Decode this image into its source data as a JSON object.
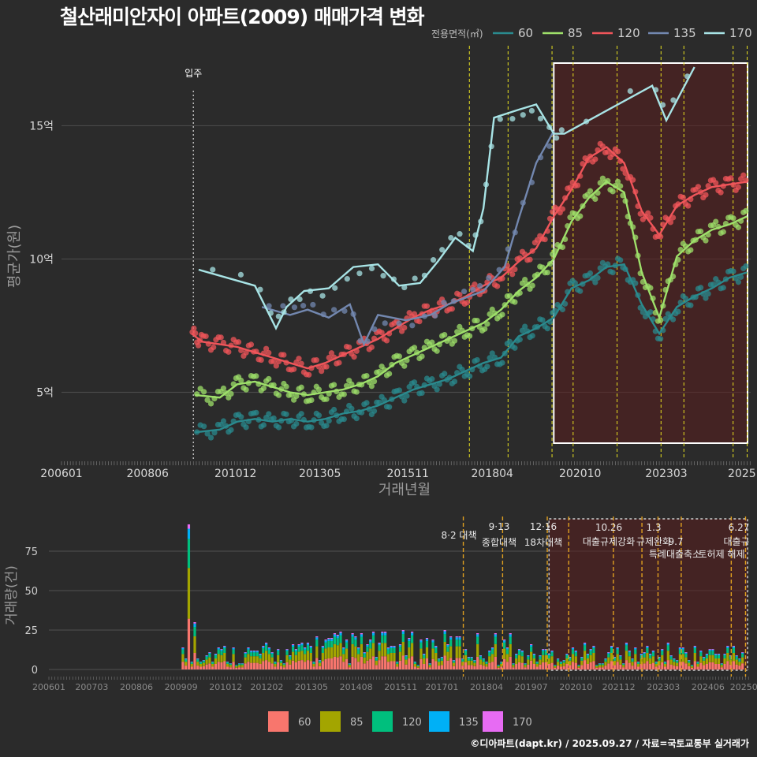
{
  "title": "철산래미안자이 아파트(2009) 매매가격 변화",
  "footer": "©디아파트(dapt.kr) / 2025.09.27 / 자료=국토교통부 실거래가",
  "legend": {
    "label": "전용면적(㎡)",
    "items": [
      {
        "name": "60",
        "line_color": "#2a8a8e",
        "bar_color": "#f8766d"
      },
      {
        "name": "85",
        "line_color": "#9ee06a",
        "bar_color": "#a3a500"
      },
      {
        "name": "120",
        "line_color": "#f0555a",
        "bar_color": "#00bf7d"
      },
      {
        "name": "135",
        "line_color": "#7388b0",
        "bar_color": "#00b0f6"
      },
      {
        "name": "170",
        "line_color": "#a8e4e6",
        "bar_color": "#e76bf3"
      }
    ]
  },
  "chart_data": [
    {
      "type": "line",
      "title": "철산래미안자이 아파트(2009) 매매가격 변화",
      "xlabel": "거래년월",
      "ylabel": "평균가(원)",
      "x_tick_labels": [
        "200601",
        "200806",
        "201012",
        "201305",
        "201511",
        "201804",
        "202010",
        "202303",
        "2025"
      ],
      "y_ticks": [
        {
          "v": 5,
          "label": "5억"
        },
        {
          "v": 10,
          "label": "10억"
        },
        {
          "v": 15,
          "label": "15억"
        }
      ],
      "ylim": [
        2.5,
        18.0
      ],
      "xlim": [
        2006.0,
        2025.6
      ],
      "move_in": {
        "x": 2009.75,
        "label": "입주"
      },
      "policy_lines": [
        2017.6,
        2018.7,
        2019.95,
        2020.55,
        2021.8,
        2023.05,
        2023.7,
        2025.1,
        2025.5
      ],
      "highlight_range": [
        2020.0,
        2025.6
      ],
      "series": [
        {
          "name": "60",
          "x": [
            2009.8,
            2010.5,
            2011.0,
            2011.5,
            2012.0,
            2012.5,
            2013.0,
            2013.5,
            2014.0,
            2014.5,
            2015.0,
            2015.5,
            2016.0,
            2016.5,
            2017.0,
            2017.5,
            2018.0,
            2018.5,
            2019.0,
            2019.5,
            2020.0,
            2020.5,
            2021.0,
            2021.5,
            2022.0,
            2022.5,
            2023.0,
            2023.5,
            2024.0,
            2024.5,
            2025.0,
            2025.5
          ],
          "values": [
            3.5,
            3.6,
            3.9,
            4.0,
            3.9,
            4.0,
            3.9,
            4.0,
            4.2,
            4.3,
            4.5,
            4.8,
            5.1,
            5.3,
            5.5,
            5.8,
            6.1,
            6.3,
            7.1,
            7.4,
            7.8,
            8.9,
            9.2,
            9.7,
            9.8,
            8.3,
            7.2,
            8.2,
            8.6,
            8.9,
            9.3,
            9.5
          ]
        },
        {
          "name": "85",
          "x": [
            2009.8,
            2010.5,
            2011.0,
            2011.5,
            2012.0,
            2012.5,
            2013.0,
            2013.5,
            2014.0,
            2014.5,
            2015.0,
            2015.5,
            2016.0,
            2016.5,
            2017.0,
            2017.5,
            2018.0,
            2018.5,
            2019.0,
            2019.5,
            2020.0,
            2020.5,
            2021.0,
            2021.5,
            2022.0,
            2022.5,
            2023.0,
            2023.5,
            2024.0,
            2024.5,
            2025.0,
            2025.5
          ],
          "values": [
            4.9,
            4.8,
            5.3,
            5.4,
            5.2,
            5.0,
            4.9,
            5.0,
            5.1,
            5.3,
            5.6,
            6.1,
            6.4,
            6.7,
            7.0,
            7.3,
            7.6,
            8.1,
            8.8,
            9.3,
            10.0,
            11.4,
            12.3,
            12.9,
            12.5,
            9.5,
            7.8,
            10.1,
            10.7,
            11.1,
            11.3,
            11.6
          ]
        },
        {
          "name": "120",
          "x": [
            2009.7,
            2010.0,
            2010.5,
            2011.0,
            2011.5,
            2012.0,
            2012.5,
            2013.0,
            2013.5,
            2014.0,
            2014.5,
            2015.0,
            2015.5,
            2016.0,
            2016.5,
            2017.0,
            2017.5,
            2018.0,
            2018.5,
            2019.0,
            2019.5,
            2020.0,
            2020.5,
            2021.0,
            2021.5,
            2022.0,
            2022.5,
            2023.0,
            2023.5,
            2024.0,
            2024.5,
            2025.0,
            2025.5
          ],
          "values": [
            7.2,
            6.9,
            6.8,
            6.7,
            6.5,
            6.3,
            6.1,
            5.9,
            6.1,
            6.4,
            6.7,
            7.0,
            7.4,
            7.8,
            8.1,
            8.3,
            8.6,
            9.0,
            9.3,
            9.9,
            10.4,
            11.6,
            12.6,
            13.8,
            14.2,
            13.6,
            11.8,
            10.9,
            12.0,
            12.4,
            12.7,
            12.8,
            12.9
          ]
        },
        {
          "name": "135",
          "x": [
            2011.7,
            2012.5,
            2013.0,
            2013.6,
            2014.2,
            2014.6,
            2015.0,
            2015.8,
            2016.5,
            2017.0,
            2017.6,
            2018.0,
            2018.6,
            2019.0,
            2019.5,
            2020.0
          ],
          "values": [
            8.2,
            7.9,
            8.1,
            7.8,
            8.3,
            6.8,
            7.9,
            7.7,
            7.9,
            8.3,
            8.6,
            8.8,
            9.7,
            11.5,
            13.6,
            14.8
          ]
        },
        {
          "name": "170",
          "x": [
            2009.9,
            2011.5,
            2012.1,
            2012.4,
            2012.9,
            2013.6,
            2014.3,
            2015.0,
            2015.6,
            2016.2,
            2016.7,
            2017.2,
            2017.7,
            2018.0,
            2018.3,
            2019.0,
            2019.5,
            2020.0,
            2020.3,
            2022.8,
            2023.2,
            2024.0
          ],
          "values": [
            9.6,
            9.0,
            7.4,
            8.2,
            8.8,
            8.9,
            9.7,
            9.8,
            9.0,
            9.1,
            9.9,
            10.8,
            10.3,
            11.9,
            15.3,
            15.6,
            15.8,
            14.7,
            14.7,
            16.5,
            15.2,
            17.2
          ]
        }
      ]
    },
    {
      "type": "bar",
      "title": "",
      "xlabel": "",
      "ylabel": "거래량(건)",
      "x_tick_labels": [
        "200601",
        "200703",
        "200806",
        "200909",
        "201012",
        "201202",
        "201305",
        "201408",
        "201511",
        "201701",
        "201804",
        "201907",
        "202010",
        "202112",
        "202303",
        "202406",
        "20250"
      ],
      "y_ticks": [
        0,
        25,
        50,
        75
      ],
      "ylim": [
        -3,
        97
      ],
      "xlim": [
        2006.0,
        2025.6
      ],
      "stacked": true,
      "notable": [
        {
          "x": 2009.9,
          "value": 92
        },
        {
          "x": 2010.1,
          "value": 30
        }
      ],
      "trend_note": "monthly volume mostly 5–25 transactions 2010–2025",
      "policy_lines": [
        2017.6,
        2018.7,
        2019.95,
        2020.55,
        2021.8,
        2022.6,
        2023.05,
        2023.7,
        2025.1,
        2025.5
      ],
      "highlight_range": [
        2020.0,
        2025.6
      ]
    }
  ],
  "annotations": [
    {
      "date": "8·2 대책",
      "label": ""
    },
    {
      "date": "9·13",
      "label": "종합대책"
    },
    {
      "date": "12·16",
      "label": "18차대책"
    },
    {
      "date": "10.26",
      "label": "대출규제강화"
    },
    {
      "date": "1.3",
      "label": "규제완화"
    },
    {
      "date": "9.7",
      "label": ""
    },
    {
      "date": "",
      "label": "특례대출축소"
    },
    {
      "date": "",
      "label": "토허제 해제"
    },
    {
      "date": "6.27",
      "label": "대출규"
    }
  ]
}
